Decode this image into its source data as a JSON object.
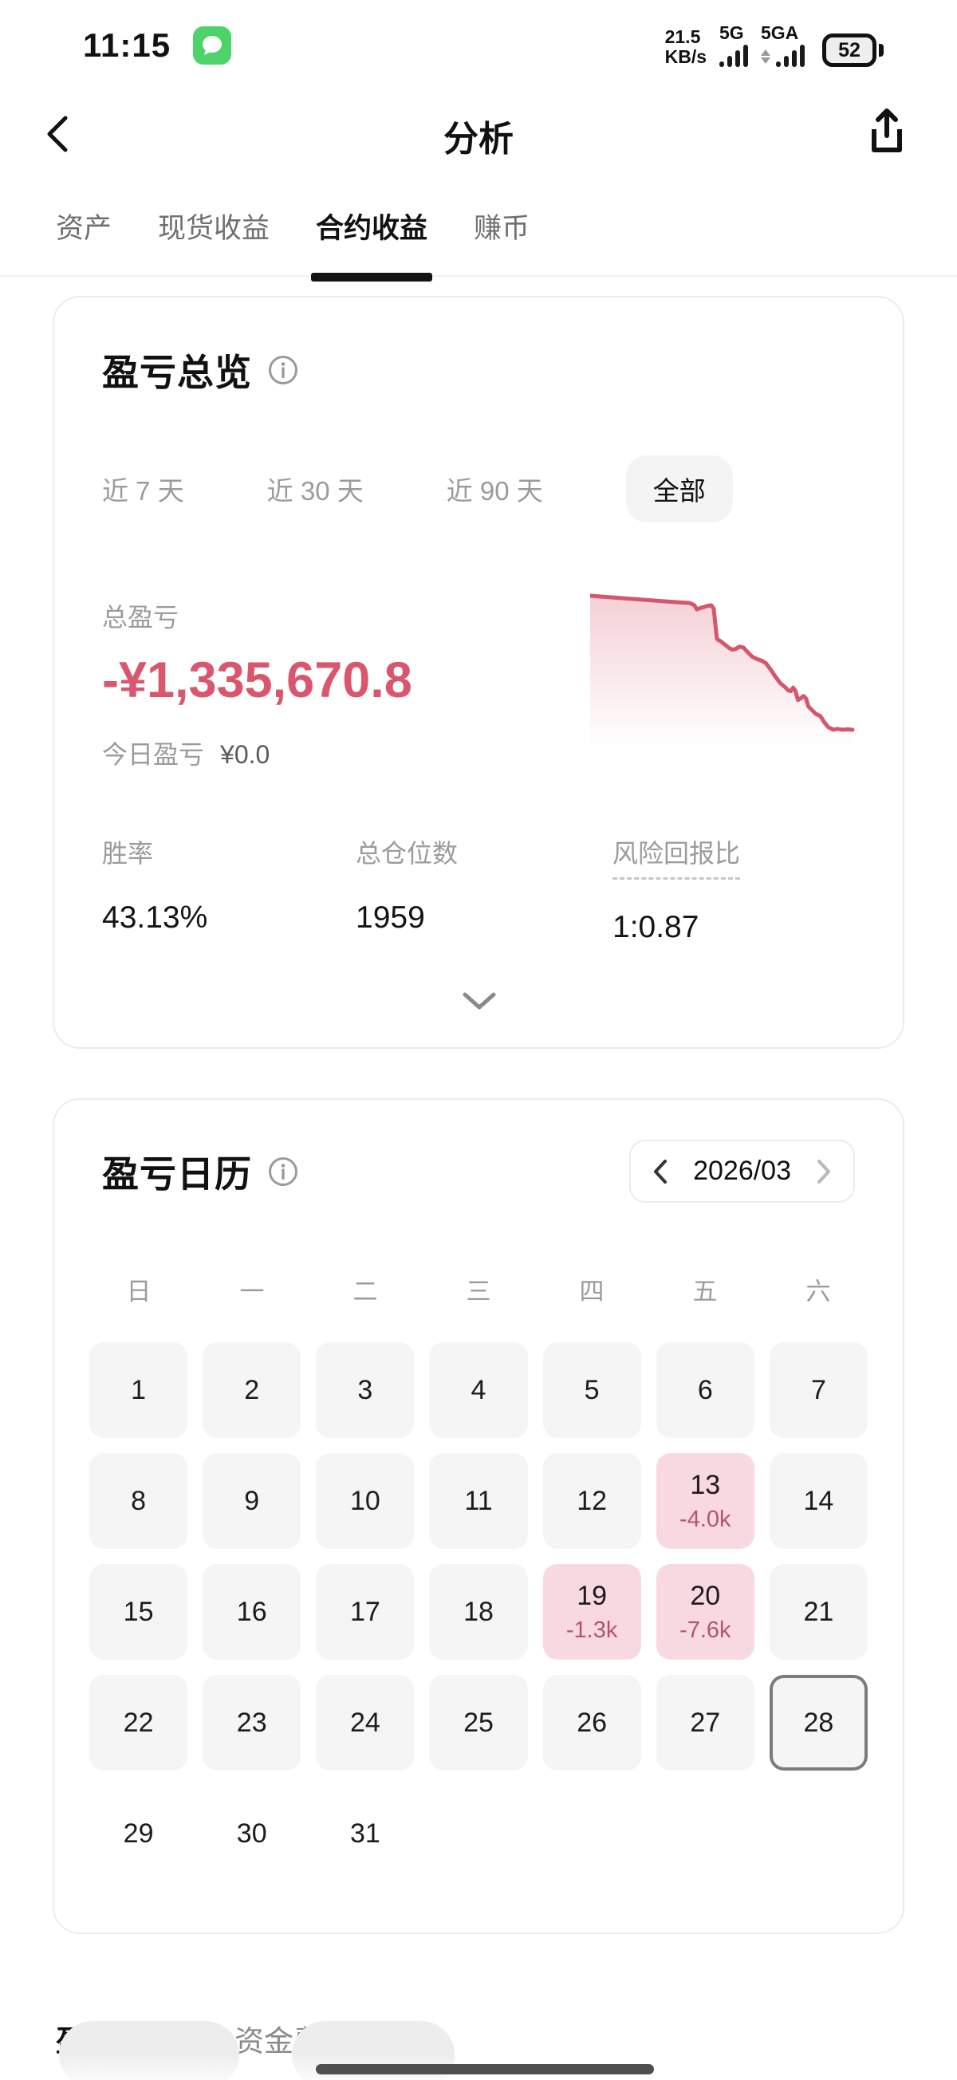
{
  "status_bar": {
    "time": "11:15",
    "net_speed_value": "21.5",
    "net_speed_unit": "KB/s",
    "net_primary": "5G",
    "net_secondary": "5GA",
    "battery": "52"
  },
  "header": {
    "title": "分析"
  },
  "nav_tabs": [
    {
      "label": "资产",
      "active": false
    },
    {
      "label": "现货收益",
      "active": false
    },
    {
      "label": "合约收益",
      "active": true
    },
    {
      "label": "赚币",
      "active": false
    }
  ],
  "overview_card": {
    "title": "盈亏总览",
    "filters": [
      {
        "label": "近 7 天",
        "active": false
      },
      {
        "label": "近 30 天",
        "active": false
      },
      {
        "label": "近 90 天",
        "active": false
      },
      {
        "label": "全部",
        "active": true
      }
    ],
    "total_label": "总盈亏",
    "total_value": "-¥1,335,670.8",
    "today_label": "今日盈亏",
    "today_value": "¥0.0",
    "stats": [
      {
        "label": "胜率",
        "value": "43.13%",
        "dashed": false
      },
      {
        "label": "总仓位数",
        "value": "1959",
        "dashed": false
      },
      {
        "label": "风险回报比",
        "value": "1:0.87",
        "dashed": true
      }
    ]
  },
  "chart_data": {
    "type": "area",
    "title": "盈亏曲线 (cumulative PnL sparkline, declining)",
    "line_color": "#d5576d",
    "fill_top": "rgba(213,87,109,0.28)",
    "fill_bottom": "rgba(213,87,109,0)",
    "x_range": [
      0,
      330
    ],
    "y_range": [
      0,
      195
    ],
    "points": [
      [
        0,
        5
      ],
      [
        20,
        6.5
      ],
      [
        40,
        8
      ],
      [
        60,
        9.5
      ],
      [
        80,
        11
      ],
      [
        100,
        12.5
      ],
      [
        115,
        13.5
      ],
      [
        124,
        14
      ],
      [
        130,
        17
      ],
      [
        133,
        22
      ],
      [
        138,
        20
      ],
      [
        142,
        19
      ],
      [
        147,
        17.5
      ],
      [
        151,
        17
      ],
      [
        154,
        21
      ],
      [
        158,
        59
      ],
      [
        163,
        62
      ],
      [
        168,
        66
      ],
      [
        173,
        70
      ],
      [
        177,
        72
      ],
      [
        181,
        71.5
      ],
      [
        186,
        68.5
      ],
      [
        191,
        69.5
      ],
      [
        196,
        75
      ],
      [
        202,
        81
      ],
      [
        208,
        84
      ],
      [
        214,
        86
      ],
      [
        219,
        89
      ],
      [
        225,
        97
      ],
      [
        231,
        106
      ],
      [
        237,
        114
      ],
      [
        243,
        119
      ],
      [
        247,
        123
      ],
      [
        250,
        124
      ],
      [
        253,
        119.5
      ],
      [
        256,
        124
      ],
      [
        259,
        135
      ],
      [
        262,
        133
      ],
      [
        266,
        130
      ],
      [
        269,
        133
      ],
      [
        272,
        143
      ],
      [
        276,
        147
      ],
      [
        281,
        152
      ],
      [
        287,
        155
      ],
      [
        292,
        163
      ],
      [
        297,
        169
      ],
      [
        303,
        172
      ],
      [
        308,
        171
      ],
      [
        314,
        172
      ],
      [
        321,
        171.5
      ],
      [
        327,
        172
      ]
    ]
  },
  "calendar_card": {
    "title": "盈亏日历",
    "month": "2026/03",
    "weekdays": [
      "日",
      "一",
      "二",
      "三",
      "四",
      "五",
      "六"
    ],
    "days": [
      {
        "day": 1
      },
      {
        "day": 2
      },
      {
        "day": 3
      },
      {
        "day": 4
      },
      {
        "day": 5
      },
      {
        "day": 6
      },
      {
        "day": 7
      },
      {
        "day": 8
      },
      {
        "day": 9
      },
      {
        "day": 10
      },
      {
        "day": 11
      },
      {
        "day": 12
      },
      {
        "day": 13,
        "value": "-4.0k"
      },
      {
        "day": 14
      },
      {
        "day": 15
      },
      {
        "day": 16
      },
      {
        "day": 17
      },
      {
        "day": 18
      },
      {
        "day": 19,
        "value": "-1.3k"
      },
      {
        "day": 20,
        "value": "-7.6k"
      },
      {
        "day": 21
      },
      {
        "day": 22
      },
      {
        "day": 23
      },
      {
        "day": 24
      },
      {
        "day": 25
      },
      {
        "day": 26
      },
      {
        "day": 27
      },
      {
        "day": 28,
        "today": true
      },
      {
        "day": 29,
        "plain": true
      },
      {
        "day": 30,
        "plain": true
      },
      {
        "day": 31,
        "plain": true
      }
    ]
  },
  "bottom_tabs": [
    {
      "label": "盈亏排行",
      "active": true
    },
    {
      "label": "资金费",
      "active": false
    }
  ],
  "colors": {
    "loss_accent": "#d9566d",
    "calendar_loss_bg": "#f8d9e2",
    "calendar_loss_text": "#b4536f",
    "today_border": "#7b7b7b"
  }
}
